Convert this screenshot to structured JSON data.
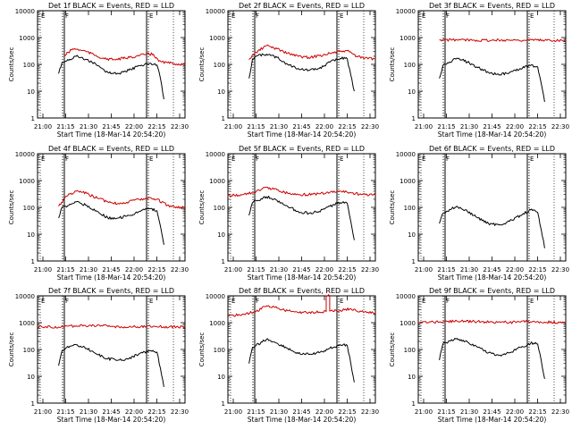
{
  "x_tick_labels": [
    "21:00",
    "21:15",
    "21:30",
    "21:45",
    "22:00",
    "22:15",
    "22:30"
  ],
  "y_tick_labels": [
    "1",
    "10",
    "100",
    "1000",
    "10000"
  ],
  "ylabel": "Counts/sec",
  "xlabel": "Start Time (18-Mar-14 20:54:20)",
  "marker_labels": [
    "E",
    "F",
    "E"
  ],
  "colors": {
    "events": "#000000",
    "lld": "#cc0000",
    "background": "#ffffff"
  },
  "chart_data": [
    {
      "type": "line",
      "title": "Det 1f BLACK = Events, RED = LLD",
      "ylog": true,
      "ylim": [
        1,
        10000
      ],
      "xlim_minutes": [
        -6,
        36
      ],
      "marker_lines_minutes": [
        1,
        2,
        28,
        29
      ],
      "series": [
        {
          "name": "Events",
          "color": "black",
          "x": [
            0,
            1,
            2,
            5,
            8,
            11,
            14,
            17,
            20,
            23,
            26,
            28,
            29,
            30
          ],
          "y": [
            45,
            120,
            130,
            200,
            150,
            90,
            50,
            45,
            60,
            90,
            110,
            95,
            30,
            5
          ]
        },
        {
          "name": "LLD",
          "color": "red",
          "x": [
            1.5,
            4,
            7,
            10,
            13,
            16,
            19,
            22,
            25,
            27,
            28.5,
            31,
            33,
            36
          ],
          "y": [
            200,
            380,
            330,
            230,
            160,
            150,
            170,
            200,
            240,
            240,
            130,
            115,
            105,
            100
          ]
        }
      ]
    },
    {
      "type": "line",
      "title": "Det 2f BLACK = Events, RED = LLD",
      "ylog": true,
      "ylim": [
        1,
        10000
      ],
      "xlim_minutes": [
        -6,
        36
      ],
      "marker_lines_minutes": [
        1,
        2,
        28,
        29
      ],
      "series": [
        {
          "name": "Events",
          "color": "black",
          "x": [
            0,
            1,
            2,
            5,
            8,
            11,
            14,
            17,
            20,
            23,
            26,
            28,
            29,
            30
          ],
          "y": [
            30,
            160,
            200,
            240,
            180,
            100,
            70,
            60,
            70,
            120,
            170,
            160,
            40,
            10
          ]
        },
        {
          "name": "LLD",
          "color": "red",
          "x": [
            0,
            2,
            5,
            8,
            11,
            14,
            17,
            20,
            23,
            26,
            28,
            31,
            33,
            36
          ],
          "y": [
            150,
            280,
            500,
            380,
            260,
            200,
            180,
            210,
            260,
            300,
            320,
            190,
            170,
            160
          ]
        }
      ]
    },
    {
      "type": "line",
      "title": "Det 3f BLACK = Events, RED = LLD",
      "ylog": true,
      "ylim": [
        1,
        10000
      ],
      "xlim_minutes": [
        -6,
        36
      ],
      "marker_lines_minutes": [
        1,
        2,
        28,
        29
      ],
      "series": [
        {
          "name": "Events",
          "color": "black",
          "x": [
            0,
            1,
            2,
            5,
            8,
            11,
            14,
            17,
            20,
            23,
            26,
            28,
            29,
            30
          ],
          "y": [
            30,
            90,
            100,
            170,
            120,
            75,
            50,
            40,
            50,
            70,
            90,
            80,
            20,
            4
          ]
        },
        {
          "name": "LLD",
          "color": "red",
          "x": [
            0,
            5,
            10,
            15,
            20,
            25,
            30,
            36
          ],
          "y": [
            800,
            820,
            800,
            790,
            810,
            800,
            790,
            800
          ]
        }
      ]
    },
    {
      "type": "line",
      "title": "Det 4f BLACK = Events, RED = LLD",
      "ylog": true,
      "ylim": [
        1,
        10000
      ],
      "xlim_minutes": [
        -6,
        36
      ],
      "marker_lines_minutes": [
        1,
        2,
        28,
        29
      ],
      "series": [
        {
          "name": "Events",
          "color": "black",
          "x": [
            0,
            1,
            2,
            5,
            8,
            11,
            14,
            17,
            20,
            23,
            26,
            28,
            29,
            30
          ],
          "y": [
            40,
            100,
            110,
            160,
            120,
            70,
            40,
            40,
            50,
            70,
            90,
            75,
            20,
            4
          ]
        },
        {
          "name": "LLD",
          "color": "red",
          "x": [
            0,
            2,
            5,
            8,
            11,
            14,
            17,
            20,
            23,
            26,
            28,
            31,
            33,
            36
          ],
          "y": [
            110,
            250,
            400,
            330,
            220,
            160,
            140,
            160,
            200,
            230,
            200,
            120,
            105,
            95
          ]
        }
      ]
    },
    {
      "type": "line",
      "title": "Det 5f BLACK = Events, RED = LLD",
      "ylog": true,
      "ylim": [
        1,
        10000
      ],
      "xlim_minutes": [
        -6,
        36
      ],
      "marker_lines_minutes": [
        1,
        2,
        28,
        29
      ],
      "series": [
        {
          "name": "Events",
          "color": "black",
          "x": [
            0,
            1,
            2,
            5,
            8,
            11,
            14,
            17,
            20,
            23,
            26,
            28,
            29,
            30
          ],
          "y": [
            50,
            150,
            180,
            250,
            180,
            110,
            70,
            60,
            70,
            110,
            150,
            140,
            30,
            6
          ]
        },
        {
          "name": "LLD",
          "color": "red",
          "x": [
            -6,
            -2,
            2,
            5,
            8,
            11,
            14,
            17,
            20,
            23,
            26,
            29,
            32,
            36
          ],
          "y": [
            280,
            290,
            380,
            550,
            450,
            340,
            300,
            300,
            320,
            360,
            400,
            350,
            300,
            290
          ]
        }
      ]
    },
    {
      "type": "line",
      "title": "Det 6f BLACK = Events, RED = LLD",
      "ylog": true,
      "ylim": [
        1,
        10000
      ],
      "xlim_minutes": [
        -6,
        36
      ],
      "marker_lines_minutes": [
        1,
        2,
        28,
        29
      ],
      "series": [
        {
          "name": "Events",
          "color": "black",
          "x": [
            0,
            1,
            2,
            5,
            8,
            11,
            14,
            17,
            20,
            23,
            26,
            28,
            29,
            30
          ],
          "y": [
            25,
            60,
            70,
            110,
            70,
            40,
            25,
            22,
            30,
            50,
            80,
            65,
            15,
            3
          ]
        }
      ]
    },
    {
      "type": "line",
      "title": "Det 7f BLACK = Events, RED = LLD",
      "ylog": true,
      "ylim": [
        1,
        10000
      ],
      "xlim_minutes": [
        -6,
        36
      ],
      "marker_lines_minutes": [
        1,
        2,
        28,
        29
      ],
      "series": [
        {
          "name": "Events",
          "color": "black",
          "x": [
            0,
            1,
            2,
            5,
            8,
            11,
            14,
            17,
            20,
            23,
            26,
            28,
            29,
            30
          ],
          "y": [
            25,
            90,
            110,
            150,
            110,
            65,
            45,
            40,
            45,
            70,
            90,
            80,
            20,
            4
          ]
        },
        {
          "name": "LLD",
          "color": "red",
          "x": [
            -6,
            0,
            5,
            10,
            15,
            20,
            25,
            30,
            36
          ],
          "y": [
            700,
            680,
            760,
            800,
            720,
            680,
            720,
            700,
            690
          ]
        }
      ]
    },
    {
      "type": "line",
      "title": "Det 8f BLACK = Events, RED = LLD",
      "ylog": true,
      "ylim": [
        1,
        10000
      ],
      "xlim_minutes": [
        -6,
        36
      ],
      "marker_lines_minutes": [
        1,
        2,
        28,
        29
      ],
      "series": [
        {
          "name": "Events",
          "color": "black",
          "x": [
            0,
            1,
            2,
            5,
            8,
            11,
            14,
            17,
            20,
            23,
            26,
            28,
            29,
            30
          ],
          "y": [
            30,
            120,
            140,
            240,
            170,
            110,
            70,
            65,
            75,
            110,
            150,
            140,
            30,
            6
          ]
        },
        {
          "name": "LLD",
          "color": "red",
          "x": [
            -6,
            -2,
            2,
            5,
            8,
            11,
            14,
            17,
            20,
            22,
            22,
            23,
            23,
            26,
            29,
            32,
            36
          ],
          "y": [
            1800,
            2000,
            2600,
            4200,
            3500,
            2800,
            2400,
            2400,
            2500,
            2600,
            10000,
            10000,
            2700,
            2900,
            3300,
            2600,
            2300
          ]
        }
      ]
    },
    {
      "type": "line",
      "title": "Det 9f BLACK = Events, RED = LLD",
      "ylog": true,
      "ylim": [
        1,
        10000
      ],
      "xlim_minutes": [
        -6,
        36
      ],
      "marker_lines_minutes": [
        1,
        2,
        28,
        29
      ],
      "series": [
        {
          "name": "Events",
          "color": "black",
          "x": [
            0,
            1,
            2,
            5,
            8,
            11,
            14,
            17,
            20,
            23,
            26,
            28,
            29,
            30
          ],
          "y": [
            40,
            160,
            180,
            260,
            190,
            120,
            75,
            60,
            75,
            120,
            170,
            160,
            40,
            8
          ]
        },
        {
          "name": "LLD",
          "color": "red",
          "x": [
            -6,
            0,
            5,
            10,
            15,
            20,
            25,
            30,
            36
          ],
          "y": [
            1000,
            1050,
            1150,
            1100,
            1050,
            1020,
            1080,
            1050,
            1000
          ]
        }
      ]
    }
  ]
}
